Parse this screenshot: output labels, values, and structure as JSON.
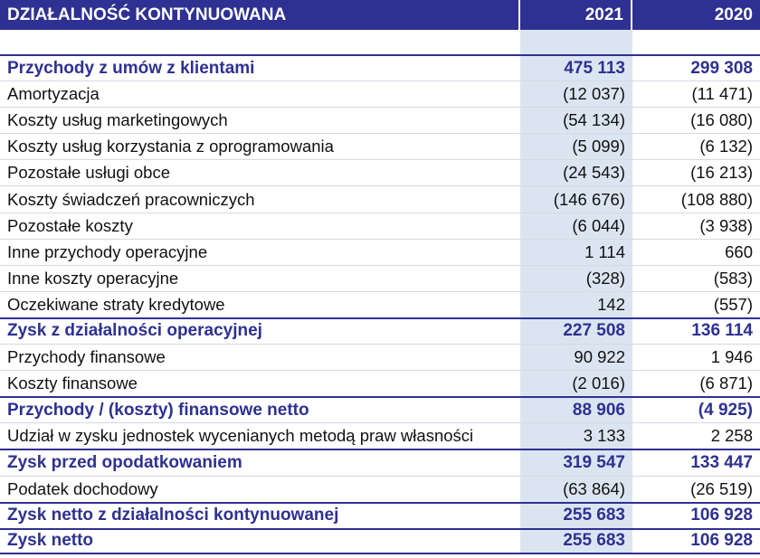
{
  "table": {
    "header": [
      "DZIAŁALNOŚĆ KONTYNUOWANA",
      "2021",
      "2020"
    ],
    "rows": [
      [
        "Przychody z umów z klientami",
        "475 113",
        "299 308"
      ],
      [
        "Amortyzacja",
        "(12 037)",
        "(11 471)"
      ],
      [
        "Koszty usług marketingowych",
        "(54 134)",
        "(16 080)"
      ],
      [
        "Koszty usług korzystania z oprogramowania",
        "(5 099)",
        "(6 132)"
      ],
      [
        "Pozostałe usługi obce",
        "(24 543)",
        "(16 213)"
      ],
      [
        "Koszty świadczeń pracowniczych",
        "(146 676)",
        "(108 880)"
      ],
      [
        "Pozostałe koszty",
        "(6 044)",
        "(3 938)"
      ],
      [
        "Inne przychody operacyjne",
        "1 114",
        "660"
      ],
      [
        "Inne koszty operacyjne",
        "(328)",
        "(583)"
      ],
      [
        "Oczekiwane straty kredytowe",
        "142",
        "(557)"
      ],
      [
        "Zysk z działalności operacyjnej",
        "227 508",
        "136 114"
      ],
      [
        "Przychody finansowe",
        "90 922",
        "1 946"
      ],
      [
        "Koszty finansowe",
        "(2 016)",
        "(6 871)"
      ],
      [
        "Przychody / (koszty) finansowe netto",
        "88 906",
        "(4 925)"
      ],
      [
        "Udział w zysku jednostek wycenianych metodą praw własności",
        "3 133",
        "2 258"
      ],
      [
        "Zysk przed opodatkowaniem",
        "319 547",
        "133 447"
      ],
      [
        "Podatek dochodowy",
        "(63 864)",
        "(26 519)"
      ],
      [
        "Zysk netto z działalności kontynuowanej",
        "255 683",
        "106 928"
      ],
      [
        "Zysk netto",
        "255 683",
        "106 928"
      ]
    ]
  }
}
